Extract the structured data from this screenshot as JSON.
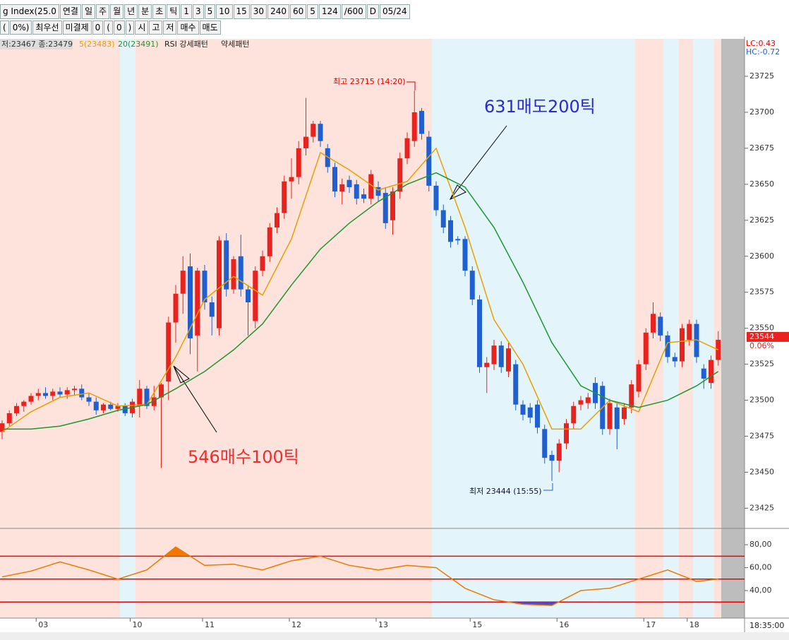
{
  "toolbar": [
    "g Index(25.0",
    "연결",
    "일",
    "주",
    "월",
    "년",
    "분",
    "초",
    "틱",
    "1",
    "3",
    "5",
    "10",
    "15",
    "30",
    "240",
    "60",
    "5",
    "124",
    "/600",
    "D",
    "05/24"
  ],
  "order_bar": [
    "(",
    "0%)",
    "최우선",
    "미결제",
    "0",
    "(",
    "0",
    ")",
    "시",
    "고",
    "저",
    "매수",
    "매도"
  ],
  "chart_data": {
    "type": "candlestick",
    "legend_info": "저:23467 종:23479",
    "pattern_up": "RSI 강세패턴",
    "pattern_down": "약세패턴",
    "lc": "LC:0.43",
    "hc": "HC:-0.72",
    "last_price": 23544,
    "last_change": "0.06%",
    "time_label": "18:35:00",
    "annotations": {
      "high": "최고 23715 (14:20)",
      "low": "최저 23444 (15:55)",
      "sell": "631매도200틱",
      "buy": "546매수100틱"
    },
    "categories": [
      null,
      null,
      null,
      null,
      null,
      "03",
      null,
      null,
      null,
      null,
      null,
      null,
      null,
      null,
      null,
      null,
      null,
      null,
      "10",
      null,
      null,
      null,
      null,
      null,
      null,
      null,
      null,
      null,
      "11",
      null,
      null,
      null,
      null,
      null,
      null,
      null,
      null,
      null,
      null,
      null,
      "12",
      null,
      null,
      null,
      null,
      null,
      null,
      null,
      null,
      null,
      null,
      null,
      "13",
      null,
      null,
      null,
      null,
      null,
      null,
      null,
      null,
      null,
      null,
      null,
      null,
      "15",
      null,
      null,
      null,
      null,
      null,
      null,
      null,
      null,
      null,
      null,
      null,
      "16",
      null,
      null,
      null,
      null,
      null,
      null,
      null,
      null,
      null,
      null,
      null,
      "17",
      null,
      null,
      null,
      null,
      null,
      "18",
      null,
      null,
      null,
      null
    ],
    "open": [
      23478,
      23484,
      23491,
      23496,
      23499,
      23503,
      23505,
      23503,
      23506,
      23504,
      23507,
      23508,
      23502,
      23499,
      23493,
      23497,
      23494,
      23496,
      23491,
      23496,
      23508,
      23496,
      23502,
      23513,
      23554,
      23574,
      23593,
      23545,
      23590,
      23568,
      23550,
      23611,
      23577,
      23600,
      23577,
      23555,
      23590,
      23600,
      23620,
      23630,
      23652,
      23655,
      23675,
      23683,
      23692,
      23675,
      23662,
      23645,
      23653,
      23650,
      23643,
      23640,
      23648,
      23644,
      23625,
      23645,
      23668,
      23680,
      23701,
      23683,
      23649,
      23632,
      23625,
      23612,
      23612,
      23590,
      23570,
      23523,
      23525,
      23538,
      23520,
      23525,
      23497,
      23495,
      23497,
      23480,
      23462,
      23458,
      23470,
      23484,
      23497,
      23498,
      23512,
      23510,
      23480,
      23495,
      23487,
      23495,
      23506,
      23525,
      23547,
      23558,
      23545,
      23530,
      23527,
      23542,
      23553,
      23522,
      23512,
      23528
    ],
    "high": [
      23486,
      23493,
      23498,
      23500,
      23505,
      23508,
      23509,
      23508,
      23509,
      23509,
      23510,
      23511,
      23505,
      23502,
      23498,
      23499,
      23498,
      23498,
      23501,
      23514,
      23510,
      23510,
      23512,
      23558,
      23580,
      23600,
      23602,
      23592,
      23594,
      23572,
      23614,
      23616,
      23600,
      23615,
      23580,
      23593,
      23604,
      23623,
      23634,
      23656,
      23668,
      23680,
      23710,
      23694,
      23694,
      23678,
      23665,
      23654,
      23656,
      23653,
      23647,
      23660,
      23652,
      23648,
      23648,
      23672,
      23686,
      23715,
      23703,
      23687,
      23652,
      23636,
      23628,
      23614,
      23614,
      23593,
      23573,
      23530,
      23542,
      23541,
      23540,
      23528,
      23500,
      23498,
      23500,
      23483,
      23465,
      23473,
      23487,
      23499,
      23503,
      23505,
      23516,
      23513,
      23501,
      23498,
      23498,
      23514,
      23528,
      23550,
      23568,
      23561,
      23548,
      23533,
      23553,
      23556,
      23556,
      23525,
      23531,
      23548
    ],
    "low": [
      23473,
      23482,
      23489,
      23492,
      23497,
      23500,
      23501,
      23500,
      23502,
      23501,
      23503,
      23500,
      23496,
      23490,
      23491,
      23493,
      23492,
      23489,
      23488,
      23488,
      23494,
      23493,
      23453,
      23500,
      23540,
      23560,
      23532,
      23520,
      23563,
      23545,
      23545,
      23572,
      23574,
      23572,
      23545,
      23550,
      23586,
      23596,
      23616,
      23626,
      23640,
      23650,
      23670,
      23679,
      23676,
      23658,
      23641,
      23636,
      23644,
      23636,
      23637,
      23636,
      23638,
      23619,
      23615,
      23640,
      23664,
      23676,
      23681,
      23645,
      23628,
      23616,
      23606,
      23608,
      23586,
      23566,
      23519,
      23505,
      23521,
      23519,
      23516,
      23493,
      23486,
      23484,
      23477,
      23456,
      23444,
      23450,
      23466,
      23480,
      23493,
      23494,
      23494,
      23476,
      23476,
      23466,
      23483,
      23491,
      23502,
      23521,
      23543,
      23541,
      23526,
      23523,
      23523,
      23538,
      23526,
      23508,
      23508,
      23524
    ],
    "close": [
      23484,
      23491,
      23496,
      23499,
      23503,
      23505,
      23503,
      23506,
      23504,
      23507,
      23508,
      23502,
      23499,
      23493,
      23497,
      23494,
      23496,
      23491,
      23499,
      23508,
      23496,
      23502,
      23511,
      23554,
      23574,
      23590,
      23543,
      23590,
      23568,
      23558,
      23611,
      23577,
      23598,
      23577,
      23568,
      23590,
      23600,
      23620,
      23630,
      23652,
      23655,
      23675,
      23683,
      23692,
      23680,
      23662,
      23645,
      23650,
      23648,
      23640,
      23640,
      23657,
      23642,
      23623,
      23645,
      23668,
      23682,
      23700,
      23685,
      23649,
      23632,
      23620,
      23610,
      23611,
      23590,
      23570,
      23523,
      23526,
      23538,
      23523,
      23536,
      23497,
      23490,
      23488,
      23481,
      23460,
      23458,
      23470,
      23484,
      23496,
      23500,
      23502,
      23498,
      23480,
      23498,
      23480,
      23495,
      23511,
      23525,
      23547,
      23560,
      23545,
      23530,
      23527,
      23550,
      23553,
      23530,
      23515,
      23528,
      23542
    ],
    "up_color": "#e8231f",
    "down_color": "#1f5fd0",
    "ylim": [
      23411,
      23751
    ],
    "yticks": [
      23425,
      23450,
      23475,
      23500,
      23525,
      23550,
      23575,
      23600,
      23625,
      23650,
      23675,
      23700,
      23725
    ],
    "series": [
      {
        "name": "5(23483)",
        "color": "#e8a000",
        "x": [
          0,
          4,
          8,
          12,
          16,
          20,
          24,
          28,
          32,
          36,
          40,
          44,
          48,
          52,
          56,
          60,
          64,
          68,
          72,
          76,
          80,
          84,
          88,
          92,
          96,
          99
        ],
        "values": [
          23478,
          23492,
          23502,
          23505,
          23496,
          23497,
          23530,
          23570,
          23586,
          23573,
          23612,
          23672,
          23660,
          23646,
          23652,
          23675,
          23620,
          23556,
          23525,
          23480,
          23480,
          23500,
          23492,
          23540,
          23542,
          23535
        ]
      },
      {
        "name": "20(23491)",
        "color": "#1e9630",
        "x": [
          0,
          4,
          8,
          12,
          16,
          20,
          24,
          28,
          32,
          36,
          40,
          44,
          48,
          52,
          56,
          60,
          64,
          68,
          72,
          76,
          80,
          84,
          88,
          92,
          96,
          99
        ],
        "values": [
          23480,
          23480,
          23482,
          23487,
          23493,
          23497,
          23508,
          23520,
          23535,
          23553,
          23580,
          23605,
          23623,
          23638,
          23650,
          23658,
          23648,
          23620,
          23582,
          23540,
          23510,
          23500,
          23495,
          23500,
          23510,
          23520
        ]
      }
    ],
    "rsi": {
      "color": "#f07800",
      "x": [
        0,
        4,
        8,
        12,
        16,
        20,
        24,
        28,
        32,
        36,
        40,
        44,
        48,
        52,
        56,
        60,
        64,
        68,
        72,
        76,
        80,
        84,
        88,
        92,
        96,
        99
      ],
      "values": [
        52,
        57,
        65,
        58,
        50,
        58,
        78,
        62,
        63,
        58,
        66,
        70,
        62,
        58,
        62,
        60,
        42,
        32,
        28,
        27,
        40,
        42,
        50,
        58,
        48,
        50
      ],
      "ylim": [
        16,
        93
      ],
      "levels": [
        70,
        50,
        30
      ],
      "yticks": [
        {
          "value": 80,
          "label": "80,00"
        },
        {
          "value": 60,
          "label": "60,00"
        },
        {
          "value": 40,
          "label": "40,00"
        }
      ]
    }
  }
}
